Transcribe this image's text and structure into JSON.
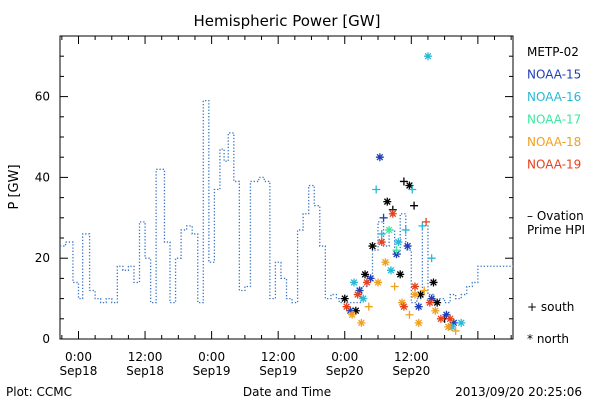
{
  "chart_data": {
    "type": "line",
    "title": "Hemispheric Power [GW]",
    "ylabel": "P [GW]",
    "xlabel": "Date and Time",
    "ylim": [
      0,
      75
    ],
    "xlim": [
      "2013-09-17 20:40",
      "2013-09-21 06:20"
    ],
    "y_ticks": [
      0,
      20,
      40,
      60
    ],
    "x_ticks": [
      {
        "t": "2013-09-18 00:00",
        "time": "0:00",
        "date": "Sep18"
      },
      {
        "t": "2013-09-18 12:00",
        "time": "12:00",
        "date": "Sep18"
      },
      {
        "t": "2013-09-19 00:00",
        "time": "0:00",
        "date": "Sep19"
      },
      {
        "t": "2013-09-19 12:00",
        "time": "12:00",
        "date": "Sep19"
      },
      {
        "t": "2013-09-20 00:00",
        "time": "0:00",
        "date": "Sep20"
      },
      {
        "t": "2013-09-20 12:00",
        "time": "12:00",
        "date": "Sep20"
      }
    ],
    "ovation": {
      "name": "– Ovation Prime HPI",
      "color": "#3a75c4",
      "style": "dotted-step",
      "points": [
        [
          "2013-09-17 20:40",
          23
        ],
        [
          "2013-09-17 21:40",
          24
        ],
        [
          "2013-09-17 23:00",
          14
        ],
        [
          "2013-09-18 00:00",
          10
        ],
        [
          "2013-09-18 00:45",
          26
        ],
        [
          "2013-09-18 02:00",
          12
        ],
        [
          "2013-09-18 03:00",
          10
        ],
        [
          "2013-09-18 04:00",
          9
        ],
        [
          "2013-09-18 05:00",
          10
        ],
        [
          "2013-09-18 06:00",
          9
        ],
        [
          "2013-09-18 07:00",
          18
        ],
        [
          "2013-09-18 08:00",
          17
        ],
        [
          "2013-09-18 09:00",
          18
        ],
        [
          "2013-09-18 10:00",
          14
        ],
        [
          "2013-09-18 11:00",
          29
        ],
        [
          "2013-09-18 12:00",
          20
        ],
        [
          "2013-09-18 13:00",
          9
        ],
        [
          "2013-09-18 14:00",
          42
        ],
        [
          "2013-09-18 15:30",
          24
        ],
        [
          "2013-09-18 16:30",
          9
        ],
        [
          "2013-09-18 17:30",
          20
        ],
        [
          "2013-09-18 18:30",
          27
        ],
        [
          "2013-09-18 19:30",
          28
        ],
        [
          "2013-09-18 20:30",
          26
        ],
        [
          "2013-09-18 21:30",
          9
        ],
        [
          "2013-09-18 22:30",
          59
        ],
        [
          "2013-09-18 23:30",
          19
        ],
        [
          "2013-09-19 00:30",
          37
        ],
        [
          "2013-09-19 01:30",
          47
        ],
        [
          "2013-09-19 02:15",
          44
        ],
        [
          "2013-09-19 03:00",
          51
        ],
        [
          "2013-09-19 04:00",
          39
        ],
        [
          "2013-09-19 05:00",
          12
        ],
        [
          "2013-09-19 06:00",
          13
        ],
        [
          "2013-09-19 07:00",
          39
        ],
        [
          "2013-09-19 08:30",
          40
        ],
        [
          "2013-09-19 09:30",
          39
        ],
        [
          "2013-09-19 10:30",
          10
        ],
        [
          "2013-09-19 11:30",
          19
        ],
        [
          "2013-09-19 12:30",
          15
        ],
        [
          "2013-09-19 13:30",
          10
        ],
        [
          "2013-09-19 14:30",
          9
        ],
        [
          "2013-09-19 15:30",
          27
        ],
        [
          "2013-09-19 16:30",
          31
        ],
        [
          "2013-09-19 17:30",
          38
        ],
        [
          "2013-09-19 18:30",
          33
        ],
        [
          "2013-09-19 19:30",
          23
        ],
        [
          "2013-09-19 20:30",
          10
        ],
        [
          "2013-09-19 21:30",
          11
        ],
        [
          "2013-09-19 22:30",
          10
        ],
        [
          "2013-09-19 23:00",
          9
        ],
        [
          "2013-09-20 03:00",
          13
        ],
        [
          "2013-09-20 04:00",
          15
        ],
        [
          "2013-09-20 05:00",
          22
        ],
        [
          "2013-09-20 06:00",
          29
        ],
        [
          "2013-09-20 07:00",
          23
        ],
        [
          "2013-09-20 08:00",
          27
        ],
        [
          "2013-09-20 09:00",
          21
        ],
        [
          "2013-09-20 10:00",
          31
        ],
        [
          "2013-09-20 11:00",
          22
        ],
        [
          "2013-09-20 12:00",
          9
        ],
        [
          "2013-09-20 13:00",
          10
        ],
        [
          "2013-09-20 14:00",
          28
        ],
        [
          "2013-09-20 15:00",
          11
        ],
        [
          "2013-09-20 16:00",
          9
        ],
        [
          "2013-09-20 17:00",
          10
        ],
        [
          "2013-09-20 18:00",
          9
        ],
        [
          "2013-09-20 19:00",
          11
        ],
        [
          "2013-09-20 20:00",
          10
        ],
        [
          "2013-09-20 21:00",
          11
        ],
        [
          "2013-09-20 22:00",
          13
        ],
        [
          "2013-09-20 23:00",
          14
        ],
        [
          "2013-09-21 00:00",
          18
        ]
      ]
    },
    "series": [
      {
        "name": "METP-02",
        "color": "#000000",
        "points": [
          [
            "2013-09-20 00:00",
            10,
            "north"
          ],
          [
            "2013-09-20 02:00",
            7,
            "north"
          ],
          [
            "2013-09-20 03:40",
            16,
            "north"
          ],
          [
            "2013-09-20 05:00",
            23,
            "north"
          ],
          [
            "2013-09-20 07:40",
            34,
            "north"
          ],
          [
            "2013-09-20 08:40",
            32,
            "south"
          ],
          [
            "2013-09-20 10:00",
            16,
            "north"
          ],
          [
            "2013-09-20 10:40",
            39,
            "south"
          ],
          [
            "2013-09-20 11:40",
            38,
            "north"
          ],
          [
            "2013-09-20 12:30",
            33,
            "south"
          ],
          [
            "2013-09-20 13:40",
            11,
            "north"
          ],
          [
            "2013-09-20 16:00",
            14,
            "north"
          ],
          [
            "2013-09-20 16:40",
            9,
            "north"
          ],
          [
            "2013-09-20 18:00",
            5,
            "south"
          ]
        ]
      },
      {
        "name": "NOAA-15",
        "color": "#1f3fb8",
        "points": [
          [
            "2013-09-20 01:00",
            7,
            "north"
          ],
          [
            "2013-09-20 02:40",
            12,
            "north"
          ],
          [
            "2013-09-20 04:40",
            15,
            "north"
          ],
          [
            "2013-09-20 06:20",
            45,
            "north"
          ],
          [
            "2013-09-20 07:00",
            30,
            "south"
          ],
          [
            "2013-09-20 09:20",
            21,
            "north"
          ],
          [
            "2013-09-20 11:20",
            23,
            "north"
          ],
          [
            "2013-09-20 13:20",
            8,
            "north"
          ],
          [
            "2013-09-20 15:40",
            10,
            "north"
          ],
          [
            "2013-09-20 18:20",
            6,
            "north"
          ],
          [
            "2013-09-20 19:40",
            4,
            "north"
          ]
        ]
      },
      {
        "name": "NOAA-16",
        "color": "#28b8d8",
        "points": [
          [
            "2013-09-20 01:40",
            14,
            "north"
          ],
          [
            "2013-09-20 03:20",
            10,
            "north"
          ],
          [
            "2013-09-20 05:40",
            37,
            "south"
          ],
          [
            "2013-09-20 06:40",
            26,
            "south"
          ],
          [
            "2013-09-20 08:20",
            17,
            "north"
          ],
          [
            "2013-09-20 09:40",
            24,
            "north"
          ],
          [
            "2013-09-20 11:00",
            27,
            "south"
          ],
          [
            "2013-09-20 12:10",
            37,
            "south"
          ],
          [
            "2013-09-20 14:00",
            28,
            "south"
          ],
          [
            "2013-09-20 15:00",
            70,
            "north"
          ],
          [
            "2013-09-20 15:40",
            20,
            "south"
          ],
          [
            "2013-09-20 19:20",
            3,
            "north"
          ],
          [
            "2013-09-20 21:00",
            4,
            "north"
          ]
        ]
      },
      {
        "name": "NOAA-17",
        "color": "#3ee8a0",
        "points": [
          [
            "2013-09-20 08:00",
            27,
            "north"
          ],
          [
            "2013-09-20 09:20",
            22,
            "south"
          ]
        ]
      },
      {
        "name": "NOAA-18",
        "color": "#f0a020",
        "points": [
          [
            "2013-09-20 01:20",
            6,
            "north"
          ],
          [
            "2013-09-20 03:00",
            4,
            "north"
          ],
          [
            "2013-09-20 04:20",
            8,
            "south"
          ],
          [
            "2013-09-20 06:00",
            14,
            "north"
          ],
          [
            "2013-09-20 07:20",
            19,
            "north"
          ],
          [
            "2013-09-20 09:00",
            13,
            "south"
          ],
          [
            "2013-09-20 10:20",
            9,
            "north"
          ],
          [
            "2013-09-20 11:40",
            6,
            "south"
          ],
          [
            "2013-09-20 12:40",
            11,
            "north"
          ],
          [
            "2013-09-20 13:20",
            4,
            "north"
          ],
          [
            "2013-09-20 14:20",
            12,
            "south"
          ],
          [
            "2013-09-20 16:20",
            7,
            "north"
          ],
          [
            "2013-09-20 18:40",
            3,
            "north"
          ],
          [
            "2013-09-20 20:00",
            2,
            "south"
          ]
        ]
      },
      {
        "name": "NOAA-19",
        "color": "#e8401a",
        "points": [
          [
            "2013-09-20 00:20",
            8,
            "north"
          ],
          [
            "2013-09-20 02:20",
            11,
            "north"
          ],
          [
            "2013-09-20 04:00",
            14,
            "north"
          ],
          [
            "2013-09-20 06:40",
            24,
            "north"
          ],
          [
            "2013-09-20 08:40",
            31,
            "north"
          ],
          [
            "2013-09-20 10:40",
            8,
            "north"
          ],
          [
            "2013-09-20 12:40",
            13,
            "north"
          ],
          [
            "2013-09-20 14:40",
            29,
            "south"
          ],
          [
            "2013-09-20 15:20",
            9,
            "north"
          ],
          [
            "2013-09-20 17:20",
            5,
            "north"
          ],
          [
            "2013-09-20 19:00",
            5,
            "north"
          ]
        ]
      }
    ],
    "marker_legend": {
      "south": "+ south",
      "north": "* north"
    }
  },
  "footer": {
    "plot_source": "Plot: CCMC",
    "timestamp": "2013/09/20 20:25:06"
  }
}
